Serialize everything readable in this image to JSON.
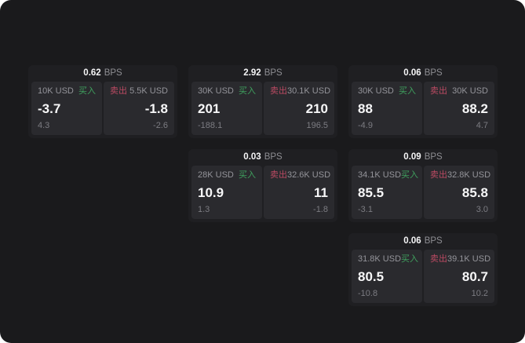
{
  "theme": {
    "page_bg": "#1a1a1c",
    "card_bg": "#1f1f22",
    "panel_bg": "#2a2a2e",
    "buy_color": "#3fa05e",
    "sell_color": "#bb4a62"
  },
  "labels": {
    "bps_unit": "BPS",
    "buy": "买入",
    "sell": "卖出"
  },
  "cards": [
    {
      "bps": "0.62",
      "buy": {
        "amount": "10K USD",
        "value": "-3.7",
        "change": "4.3"
      },
      "sell": {
        "amount": "5.5K USD",
        "value": "-1.8",
        "change": "-2.6"
      }
    },
    {
      "bps": "2.92",
      "buy": {
        "amount": "30K USD",
        "value": "201",
        "change": "-188.1"
      },
      "sell": {
        "amount": "30.1K USD",
        "value": "210",
        "change": "196.5"
      }
    },
    {
      "bps": "0.06",
      "buy": {
        "amount": "30K USD",
        "value": "88",
        "change": "-4.9"
      },
      "sell": {
        "amount": "30K USD",
        "value": "88.2",
        "change": "4.7"
      }
    },
    {
      "bps": "0.03",
      "buy": {
        "amount": "28K USD",
        "value": "10.9",
        "change": "1.3"
      },
      "sell": {
        "amount": "32.6K USD",
        "value": "11",
        "change": "-1.8"
      }
    },
    {
      "bps": "0.09",
      "buy": {
        "amount": "34.1K USD",
        "value": "85.5",
        "change": "-3.1"
      },
      "sell": {
        "amount": "32.8K USD",
        "value": "85.8",
        "change": "3.0"
      }
    },
    {
      "bps": "0.06",
      "buy": {
        "amount": "31.8K USD",
        "value": "80.5",
        "change": "-10.8"
      },
      "sell": {
        "amount": "39.1K USD",
        "value": "80.7",
        "change": "10.2"
      }
    }
  ]
}
